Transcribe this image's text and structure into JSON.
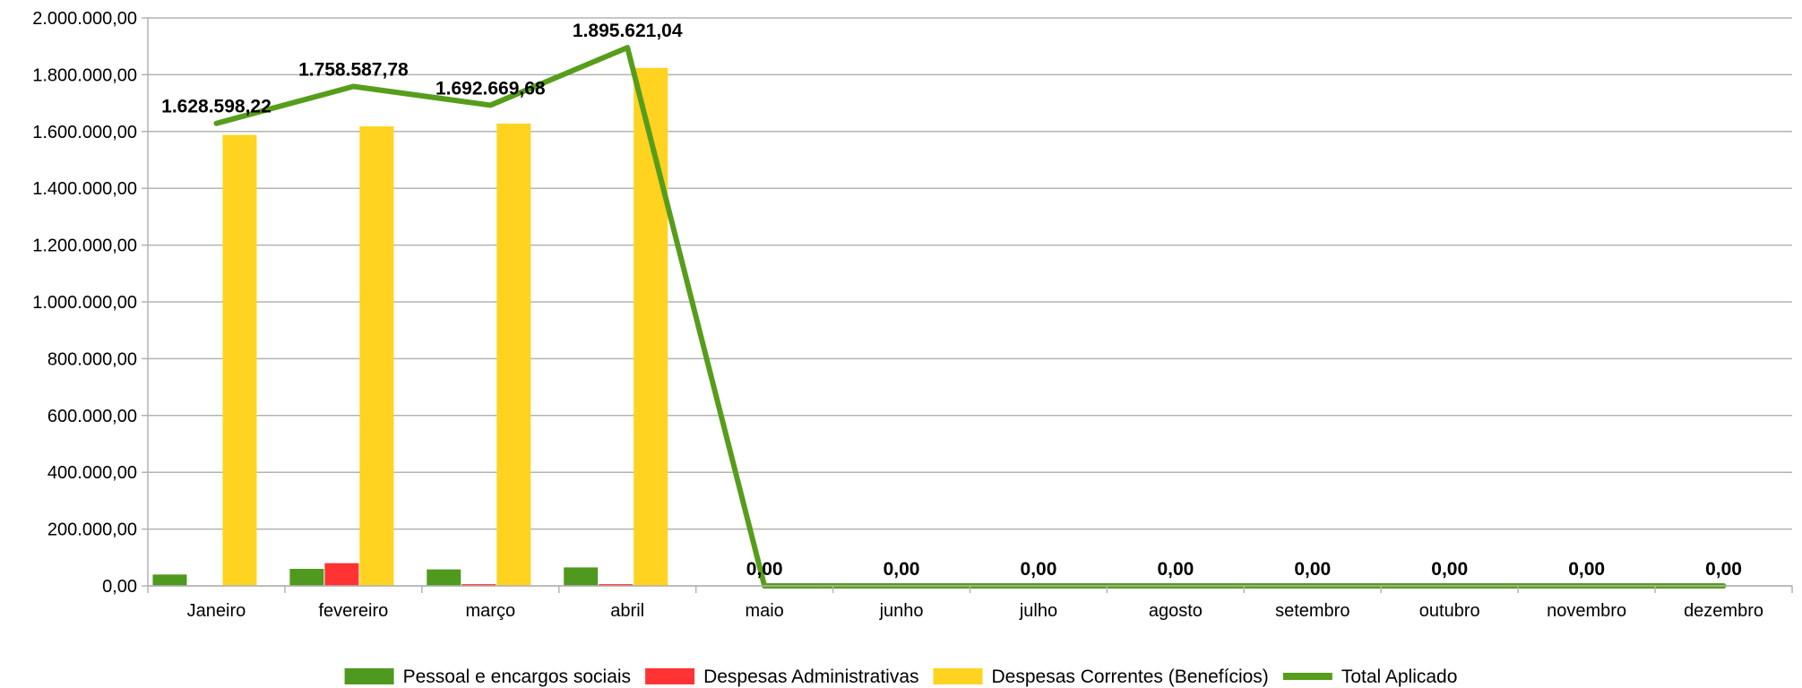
{
  "chart_data": {
    "type": "bar",
    "categories": [
      "Janeiro",
      "fevereiro",
      "março",
      "abril",
      "maio",
      "junho",
      "julho",
      "agosto",
      "setembro",
      "outubro",
      "novembro",
      "dezembro"
    ],
    "series": [
      {
        "name": "Pessoal e encargos sociais",
        "kind": "bar",
        "color": "#4f9a1e",
        "values": [
          40000,
          60000,
          58000,
          65000,
          0,
          0,
          0,
          0,
          0,
          0,
          0,
          0
        ]
      },
      {
        "name": "Despesas Administrativas",
        "kind": "bar",
        "color": "#ff3333",
        "values": [
          0,
          80000,
          6000,
          6000,
          0,
          0,
          0,
          0,
          0,
          0,
          0,
          0
        ]
      },
      {
        "name": "Despesas Correntes (Benefícios)",
        "kind": "bar",
        "color": "#ffd320",
        "values": [
          1588000,
          1618000,
          1628000,
          1824000,
          0,
          0,
          0,
          0,
          0,
          0,
          0,
          0
        ]
      },
      {
        "name": "Total Aplicado",
        "kind": "line",
        "color": "#579d1c",
        "values": [
          1628598.22,
          1758587.78,
          1692669.68,
          1895621.04,
          0,
          0,
          0,
          0,
          0,
          0,
          0,
          0
        ]
      }
    ],
    "data_labels": [
      "1.628.598,22",
      "1.758.587,78",
      "1.692.669,68",
      "1.895.621,04",
      "0,00",
      "0,00",
      "0,00",
      "0,00",
      "0,00",
      "0,00",
      "0,00",
      "0,00"
    ],
    "y_ticks": [
      "0,00",
      "200.000,00",
      "400.000,00",
      "600.000,00",
      "800.000,00",
      "1.000.000,00",
      "1.200.000,00",
      "1.400.000,00",
      "1.600.000,00",
      "1.800.000,00",
      "2.000.000,00"
    ],
    "ylim": [
      0,
      2000000
    ],
    "grid": true,
    "legend_position": "bottom",
    "title": "",
    "xlabel": "",
    "ylabel": ""
  }
}
